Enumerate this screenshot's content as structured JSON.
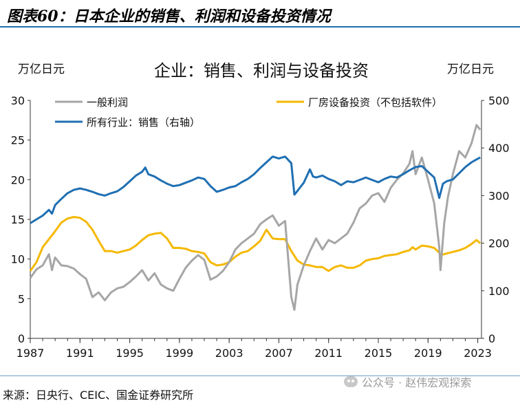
{
  "figure_title": "图表60：日本企业的销售、利润和设备投资情况",
  "source": "来源：日央行、CEIC、国金证券研究所",
  "watermark": "公众号 · 赵伟宏观探索",
  "chart_data": {
    "type": "line",
    "title": "企业：销售、利润与设备投资",
    "left_unit": "万亿日元",
    "right_unit": "万亿日元",
    "xlim": [
      1987,
      2023.3
    ],
    "ylim_left": [
      0,
      30
    ],
    "ylim_right": [
      0,
      500
    ],
    "x_ticks": [
      1987,
      1991,
      1995,
      1999,
      2003,
      2007,
      2011,
      2015,
      2019,
      2023
    ],
    "y_ticks_left": [
      0,
      5,
      10,
      15,
      20,
      25,
      30
    ],
    "y_ticks_right": [
      0,
      100,
      200,
      300,
      400,
      500
    ],
    "series": [
      {
        "name": "一般利润",
        "axis": "left",
        "color": "#a6a6a6",
        "points": [
          [
            1987.0,
            7.6
          ],
          [
            1987.5,
            8.7
          ],
          [
            1988.0,
            9.2
          ],
          [
            1988.5,
            10.6
          ],
          [
            1988.75,
            8.6
          ],
          [
            1989.0,
            10.2
          ],
          [
            1989.5,
            9.2
          ],
          [
            1990.0,
            9.1
          ],
          [
            1990.5,
            8.8
          ],
          [
            1991.0,
            8.1
          ],
          [
            1991.5,
            7.5
          ],
          [
            1992.0,
            5.2
          ],
          [
            1992.5,
            5.8
          ],
          [
            1993.0,
            4.8
          ],
          [
            1993.5,
            5.8
          ],
          [
            1994.0,
            6.3
          ],
          [
            1994.5,
            6.5
          ],
          [
            1995.0,
            7.1
          ],
          [
            1995.5,
            7.8
          ],
          [
            1996.0,
            8.6
          ],
          [
            1996.5,
            7.3
          ],
          [
            1997.0,
            8.2
          ],
          [
            1997.5,
            6.8
          ],
          [
            1998.0,
            6.3
          ],
          [
            1998.5,
            6.0
          ],
          [
            1999.0,
            7.5
          ],
          [
            1999.5,
            8.9
          ],
          [
            2000.0,
            9.8
          ],
          [
            2000.5,
            10.5
          ],
          [
            2001.0,
            9.9
          ],
          [
            2001.5,
            7.4
          ],
          [
            2002.0,
            7.8
          ],
          [
            2002.5,
            8.5
          ],
          [
            2003.0,
            9.6
          ],
          [
            2003.5,
            11.2
          ],
          [
            2004.0,
            12.0
          ],
          [
            2004.5,
            12.6
          ],
          [
            2005.0,
            13.2
          ],
          [
            2005.5,
            14.4
          ],
          [
            2006.0,
            15.0
          ],
          [
            2006.5,
            15.5
          ],
          [
            2007.0,
            14.2
          ],
          [
            2007.5,
            14.8
          ],
          [
            2008.0,
            5.2
          ],
          [
            2008.25,
            3.6
          ],
          [
            2008.5,
            6.8
          ],
          [
            2009.0,
            9.2
          ],
          [
            2009.5,
            11.0
          ],
          [
            2010.0,
            12.6
          ],
          [
            2010.5,
            11.2
          ],
          [
            2011.0,
            12.4
          ],
          [
            2011.5,
            12.0
          ],
          [
            2012.0,
            12.6
          ],
          [
            2012.5,
            13.2
          ],
          [
            2013.0,
            14.6
          ],
          [
            2013.5,
            16.4
          ],
          [
            2014.0,
            17.0
          ],
          [
            2014.5,
            18.0
          ],
          [
            2015.0,
            18.3
          ],
          [
            2015.5,
            17.2
          ],
          [
            2016.0,
            19.0
          ],
          [
            2016.5,
            20.0
          ],
          [
            2017.0,
            20.8
          ],
          [
            2017.5,
            22.0
          ],
          [
            2017.75,
            23.6
          ],
          [
            2018.0,
            20.7
          ],
          [
            2018.5,
            22.8
          ],
          [
            2019.0,
            20.0
          ],
          [
            2019.5,
            17.0
          ],
          [
            2019.9,
            11.5
          ],
          [
            2020.0,
            8.6
          ],
          [
            2020.3,
            14.5
          ],
          [
            2020.6,
            17.8
          ],
          [
            2021.0,
            20.7
          ],
          [
            2021.5,
            23.6
          ],
          [
            2022.0,
            22.8
          ],
          [
            2022.5,
            24.6
          ],
          [
            2022.9,
            26.9
          ],
          [
            2023.2,
            26.3
          ]
        ]
      },
      {
        "name": "厂房设备投资（不包括软件）",
        "axis": "left",
        "color": "#f5b800",
        "points": [
          [
            1987.0,
            8.5
          ],
          [
            1987.5,
            9.6
          ],
          [
            1988.0,
            11.5
          ],
          [
            1988.5,
            12.5
          ],
          [
            1989.0,
            13.5
          ],
          [
            1989.5,
            14.6
          ],
          [
            1990.0,
            15.1
          ],
          [
            1990.5,
            15.3
          ],
          [
            1991.0,
            15.2
          ],
          [
            1991.5,
            14.7
          ],
          [
            1992.0,
            13.7
          ],
          [
            1992.5,
            12.3
          ],
          [
            1993.0,
            11.0
          ],
          [
            1993.5,
            11.0
          ],
          [
            1994.0,
            10.8
          ],
          [
            1994.5,
            11.0
          ],
          [
            1995.0,
            11.2
          ],
          [
            1995.5,
            11.7
          ],
          [
            1996.0,
            12.4
          ],
          [
            1996.5,
            13.0
          ],
          [
            1997.0,
            13.2
          ],
          [
            1997.5,
            13.3
          ],
          [
            1998.0,
            12.6
          ],
          [
            1998.5,
            11.4
          ],
          [
            1999.0,
            11.4
          ],
          [
            1999.5,
            11.3
          ],
          [
            2000.0,
            11.0
          ],
          [
            2000.5,
            10.9
          ],
          [
            2001.0,
            10.7
          ],
          [
            2001.5,
            9.6
          ],
          [
            2002.0,
            9.2
          ],
          [
            2002.5,
            9.3
          ],
          [
            2003.0,
            9.6
          ],
          [
            2003.5,
            10.3
          ],
          [
            2004.0,
            10.8
          ],
          [
            2004.5,
            11.0
          ],
          [
            2005.0,
            11.6
          ],
          [
            2005.5,
            12.3
          ],
          [
            2006.0,
            13.7
          ],
          [
            2006.5,
            12.6
          ],
          [
            2007.0,
            12.5
          ],
          [
            2007.5,
            12.5
          ],
          [
            2008.0,
            11.0
          ],
          [
            2008.5,
            9.8
          ],
          [
            2009.0,
            9.3
          ],
          [
            2009.5,
            9.2
          ],
          [
            2010.0,
            9.0
          ],
          [
            2010.5,
            9.0
          ],
          [
            2011.0,
            8.5
          ],
          [
            2011.5,
            9.0
          ],
          [
            2012.0,
            9.2
          ],
          [
            2012.5,
            8.9
          ],
          [
            2013.0,
            8.9
          ],
          [
            2013.5,
            9.2
          ],
          [
            2014.0,
            9.8
          ],
          [
            2014.5,
            10.0
          ],
          [
            2015.0,
            10.1
          ],
          [
            2015.5,
            10.4
          ],
          [
            2016.0,
            10.5
          ],
          [
            2016.5,
            10.6
          ],
          [
            2017.0,
            10.9
          ],
          [
            2017.5,
            11.1
          ],
          [
            2017.75,
            11.5
          ],
          [
            2018.0,
            11.2
          ],
          [
            2018.5,
            11.7
          ],
          [
            2019.0,
            11.6
          ],
          [
            2019.5,
            11.4
          ],
          [
            2019.9,
            10.8
          ],
          [
            2020.0,
            10.5
          ],
          [
            2020.5,
            10.7
          ],
          [
            2021.0,
            10.9
          ],
          [
            2021.5,
            11.1
          ],
          [
            2022.0,
            11.4
          ],
          [
            2022.5,
            11.9
          ],
          [
            2022.9,
            12.4
          ],
          [
            2023.2,
            12.0
          ]
        ]
      },
      {
        "name": "所有行业：销售（右轴）",
        "axis": "right",
        "color": "#1f6fb2",
        "points": [
          [
            1987.0,
            242
          ],
          [
            1987.5,
            250
          ],
          [
            1988.0,
            258
          ],
          [
            1988.5,
            270
          ],
          [
            1988.75,
            262
          ],
          [
            1989.0,
            280
          ],
          [
            1989.5,
            293
          ],
          [
            1990.0,
            305
          ],
          [
            1990.5,
            312
          ],
          [
            1991.0,
            315
          ],
          [
            1991.5,
            312
          ],
          [
            1992.0,
            308
          ],
          [
            1992.5,
            303
          ],
          [
            1993.0,
            300
          ],
          [
            1993.5,
            305
          ],
          [
            1994.0,
            309
          ],
          [
            1994.5,
            318
          ],
          [
            1995.0,
            330
          ],
          [
            1995.5,
            342
          ],
          [
            1996.0,
            350
          ],
          [
            1996.25,
            359
          ],
          [
            1996.5,
            345
          ],
          [
            1997.0,
            340
          ],
          [
            1997.5,
            332
          ],
          [
            1998.0,
            325
          ],
          [
            1998.5,
            320
          ],
          [
            1999.0,
            322
          ],
          [
            1999.5,
            327
          ],
          [
            2000.0,
            332
          ],
          [
            2000.5,
            338
          ],
          [
            2001.0,
            335
          ],
          [
            2001.5,
            320
          ],
          [
            2002.0,
            308
          ],
          [
            2002.5,
            312
          ],
          [
            2003.0,
            317
          ],
          [
            2003.5,
            320
          ],
          [
            2004.0,
            328
          ],
          [
            2004.5,
            335
          ],
          [
            2005.0,
            345
          ],
          [
            2005.5,
            358
          ],
          [
            2006.0,
            370
          ],
          [
            2006.5,
            382
          ],
          [
            2007.0,
            378
          ],
          [
            2007.5,
            382
          ],
          [
            2008.0,
            368
          ],
          [
            2008.25,
            302
          ],
          [
            2008.5,
            310
          ],
          [
            2009.0,
            327
          ],
          [
            2009.5,
            355
          ],
          [
            2009.75,
            340
          ],
          [
            2010.0,
            338
          ],
          [
            2010.5,
            342
          ],
          [
            2011.0,
            335
          ],
          [
            2011.5,
            330
          ],
          [
            2012.0,
            322
          ],
          [
            2012.5,
            330
          ],
          [
            2013.0,
            328
          ],
          [
            2013.5,
            333
          ],
          [
            2014.0,
            338
          ],
          [
            2014.5,
            333
          ],
          [
            2015.0,
            328
          ],
          [
            2015.5,
            335
          ],
          [
            2016.0,
            340
          ],
          [
            2016.5,
            338
          ],
          [
            2017.0,
            345
          ],
          [
            2017.5,
            353
          ],
          [
            2018.0,
            360
          ],
          [
            2018.5,
            362
          ],
          [
            2019.0,
            350
          ],
          [
            2019.5,
            338
          ],
          [
            2019.9,
            295
          ],
          [
            2020.2,
            325
          ],
          [
            2020.5,
            330
          ],
          [
            2021.0,
            334
          ],
          [
            2021.5,
            347
          ],
          [
            2022.0,
            360
          ],
          [
            2022.5,
            370
          ],
          [
            2022.9,
            376
          ],
          [
            2023.2,
            380
          ]
        ]
      }
    ]
  }
}
